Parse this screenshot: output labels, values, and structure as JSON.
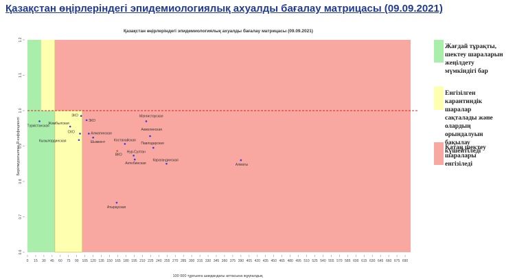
{
  "slide_title": "Қазақстан өңірлеріндегі эпидемиологиялық ахуалды бағалау матрицасы  (09.09.2021)",
  "legend": [
    {
      "text": "Жағдай тұрақты, шектеу шараларын жеңілдету мүмкіндігі бар",
      "color": "#a9eeaa"
    },
    {
      "text": "Енгізілген карантиндік шаралар сақталады және олардың орындалуын бақылау күшейтіледі",
      "color": "#ffffb0"
    },
    {
      "text": "Қатаң шектеу шаралары енгізіледі",
      "color": "#f8a8a0"
    }
  ],
  "chart_data": {
    "type": "scatter",
    "title": "Қазақстан өңірлеріндегі эпидемиологиялық ахуалды бағалау матрицасы  (09.09.2021)",
    "xlabel": "100 000 тұрғынға шаққандағы аптасына жұқпалдық",
    "ylabel": "Берілмуратылған R-кэффициенті",
    "xlim": [
      0,
      700
    ],
    "ylim": [
      0.6,
      1.2
    ],
    "x_ticks": [
      0,
      15,
      30,
      45,
      60,
      75,
      90,
      105,
      120,
      135,
      150,
      165,
      180,
      195,
      210,
      225,
      240,
      255,
      270,
      285,
      300,
      315,
      330,
      345,
      360,
      375,
      390,
      405,
      420,
      435,
      450,
      465,
      480,
      495,
      510,
      525,
      540,
      555,
      570,
      585,
      600,
      615,
      630,
      645,
      660,
      675,
      690
    ],
    "y_ticks": [
      0.6,
      0.7,
      0.8,
      0.9,
      1.0,
      1.1,
      1.2
    ],
    "zones": [
      {
        "x_from": 0,
        "x_to": 50,
        "y_from": 0.6,
        "y_to": 1.0,
        "color": "#a9eeaa"
      },
      {
        "x_from": 0,
        "x_to": 25,
        "y_from": 1.0,
        "y_to": 1.2,
        "color": "#a9eeaa"
      },
      {
        "x_from": 25,
        "x_to": 50,
        "y_from": 1.0,
        "y_to": 1.2,
        "color": "#ffffb0"
      },
      {
        "x_from": 50,
        "x_to": 100,
        "y_from": 0.6,
        "y_to": 1.0,
        "color": "#ffffb0"
      },
      {
        "x_from": 50,
        "x_to": 700,
        "y_from": 1.0,
        "y_to": 1.2,
        "color": "#f8a8a0"
      },
      {
        "x_from": 100,
        "x_to": 700,
        "y_from": 0.6,
        "y_to": 1.0,
        "color": "#f8a8a0"
      }
    ],
    "reference_line": {
      "y": 1.0,
      "color": "#e02020"
    },
    "points": [
      {
        "label": "Түркістанская",
        "x": 22,
        "y": 0.97
      },
      {
        "label": "ЗКО",
        "x": 98,
        "y": 0.985
      },
      {
        "label": "ЗКО",
        "x": 108,
        "y": 0.973
      },
      {
        "label": "Жамбылская",
        "x": 78,
        "y": 0.955
      },
      {
        "label": "СКО",
        "x": 96,
        "y": 0.935
      },
      {
        "label": "Кызылординская",
        "x": 94,
        "y": 0.917
      },
      {
        "label": "Алматинская",
        "x": 112,
        "y": 0.935
      },
      {
        "label": "Шымкент",
        "x": 120,
        "y": 0.924
      },
      {
        "label": "Мангистауская",
        "x": 217,
        "y": 0.97
      },
      {
        "label": "Акмолинская",
        "x": 224,
        "y": 0.928
      },
      {
        "label": "Костанайская",
        "x": 178,
        "y": 0.906
      },
      {
        "label": "Павлодарская",
        "x": 230,
        "y": 0.895
      },
      {
        "label": "ВКО",
        "x": 164,
        "y": 0.886
      },
      {
        "label": "Нур-Султан",
        "x": 194,
        "y": 0.873
      },
      {
        "label": "Актюбинская",
        "x": 196,
        "y": 0.862
      },
      {
        "label": "Карагандинская",
        "x": 254,
        "y": 0.85
      },
      {
        "label": "Алматы",
        "x": 390,
        "y": 0.86
      },
      {
        "label": "Атырауская",
        "x": 163,
        "y": 0.74
      }
    ]
  }
}
